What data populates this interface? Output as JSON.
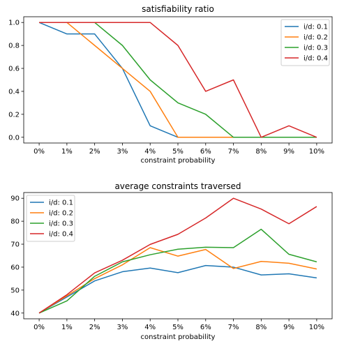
{
  "chart_data": [
    {
      "type": "line",
      "title": "satisfiability ratio",
      "xlabel": "constraint probability",
      "ylabel": "",
      "categories": [
        "0%",
        "1%",
        "2%",
        "3%",
        "4%",
        "5%",
        "6%",
        "7%",
        "8%",
        "9%",
        "10%"
      ],
      "ylim": [
        -0.05,
        1.05
      ],
      "yticks": [
        "0.0",
        "0.2",
        "0.4",
        "0.6",
        "0.8",
        "1.0"
      ],
      "legend_position": "top-right",
      "grid": false,
      "series": [
        {
          "name": "i/d: 0.1",
          "color": "#1f77b4",
          "values": [
            1.0,
            0.9,
            0.9,
            0.6,
            0.1,
            0.0,
            0.0,
            0.0,
            0.0,
            0.0,
            0.0
          ]
        },
        {
          "name": "i/d: 0.2",
          "color": "#ff7f0e",
          "values": [
            1.0,
            1.0,
            0.8,
            0.6,
            0.4,
            0.0,
            0.0,
            0.0,
            0.0,
            0.0,
            0.0
          ]
        },
        {
          "name": "i/d: 0.3",
          "color": "#2ca02c",
          "values": [
            1.0,
            1.0,
            1.0,
            0.8,
            0.5,
            0.3,
            0.2,
            0.0,
            0.0,
            0.0,
            0.0
          ]
        },
        {
          "name": "i/d: 0.4",
          "color": "#d62728",
          "values": [
            1.0,
            1.0,
            1.0,
            1.0,
            1.0,
            0.8,
            0.4,
            0.5,
            0.0,
            0.1,
            0.0
          ]
        }
      ]
    },
    {
      "type": "line",
      "title": "average constraints traversed",
      "xlabel": "constraint probability",
      "ylabel": "",
      "categories": [
        "0%",
        "1%",
        "2%",
        "3%",
        "4%",
        "5%",
        "6%",
        "7%",
        "8%",
        "9%",
        "10%"
      ],
      "ylim": [
        37.5,
        92.5
      ],
      "yticks": [
        "40",
        "50",
        "60",
        "70",
        "80",
        "90"
      ],
      "legend_position": "top-left",
      "grid": false,
      "series": [
        {
          "name": "i/d: 0.1",
          "color": "#1f77b4",
          "values": [
            40,
            47,
            54,
            58,
            59.6,
            57.6,
            60.7,
            60,
            56.6,
            57.1,
            55.3
          ]
        },
        {
          "name": "i/d: 0.2",
          "color": "#ff7f0e",
          "values": [
            40,
            47.5,
            55,
            61,
            68.5,
            64.8,
            67.7,
            59.4,
            62.5,
            61.7,
            59.2
          ]
        },
        {
          "name": "i/d: 0.3",
          "color": "#2ca02c",
          "values": [
            40,
            45.3,
            56,
            62.3,
            65.4,
            67.8,
            68.7,
            68.5,
            76.5,
            65.6,
            62.3
          ]
        },
        {
          "name": "i/d: 0.4",
          "color": "#d62728",
          "values": [
            40,
            48,
            57.5,
            63,
            69.9,
            74.3,
            81.4,
            90,
            85.3,
            78.9,
            86.4
          ]
        }
      ]
    }
  ]
}
